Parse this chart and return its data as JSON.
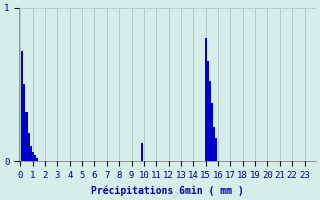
{
  "values": [
    0.0,
    0.72,
    0.5,
    0.32,
    0.18,
    0.1,
    0.06,
    0.04,
    0.02,
    0.0,
    0.0,
    0.0,
    0.0,
    0.0,
    0.0,
    0.0,
    0.0,
    0.0,
    0.0,
    0.0,
    0.0,
    0.0,
    0.0,
    0.0,
    0.0,
    0.0,
    0.0,
    0.0,
    0.0,
    0.0,
    0.0,
    0.0,
    0.0,
    0.0,
    0.0,
    0.0,
    0.0,
    0.0,
    0.0,
    0.0,
    0.0,
    0.0,
    0.0,
    0.0,
    0.0,
    0.0,
    0.0,
    0.0,
    0.0,
    0.0,
    0.0,
    0.0,
    0.0,
    0.0,
    0.0,
    0.0,
    0.0,
    0.0,
    0.0,
    0.12,
    0.0,
    0.0,
    0.0,
    0.0,
    0.0,
    0.0,
    0.0,
    0.0,
    0.0,
    0.0,
    0.0,
    0.0,
    0.0,
    0.0,
    0.0,
    0.0,
    0.0,
    0.0,
    0.0,
    0.0,
    0.0,
    0.0,
    0.0,
    0.0,
    0.0,
    0.0,
    0.0,
    0.0,
    0.0,
    0.0,
    0.8,
    0.65,
    0.52,
    0.38,
    0.22,
    0.15,
    0.0,
    0.0,
    0.0,
    0.0,
    0.0,
    0.0,
    0.0,
    0.0,
    0.0,
    0.0,
    0.0,
    0.0,
    0.0,
    0.0,
    0.0,
    0.0,
    0.0,
    0.0,
    0.0,
    0.0,
    0.0,
    0.0,
    0.0,
    0.0,
    0.0,
    0.0,
    0.0,
    0.0,
    0.0,
    0.0,
    0.0,
    0.0,
    0.0,
    0.0,
    0.0,
    0.0,
    0.0,
    0.0,
    0.0,
    0.0,
    0.0,
    0.0,
    0.0,
    0.0,
    0.0,
    0.0,
    0.0,
    0.0
  ],
  "n_per_hour": 6,
  "bar_color": "#0000cc",
  "background_color": "#d5eeea",
  "grid_color": "#b0ccc8",
  "xlabel": "Précipitations 6min ( mm )",
  "ylim": [
    0,
    1.0
  ],
  "yticks": [
    0,
    1
  ],
  "hour_labels": [
    "0",
    "1",
    "2",
    "3",
    "4",
    "5",
    "6",
    "7",
    "8",
    "9",
    "10",
    "11",
    "12",
    "13",
    "14",
    "15",
    "16",
    "17",
    "18",
    "19",
    "20",
    "21",
    "22",
    "23"
  ],
  "n_hours": 24,
  "label_fontsize": 7,
  "tick_fontsize": 6.5
}
